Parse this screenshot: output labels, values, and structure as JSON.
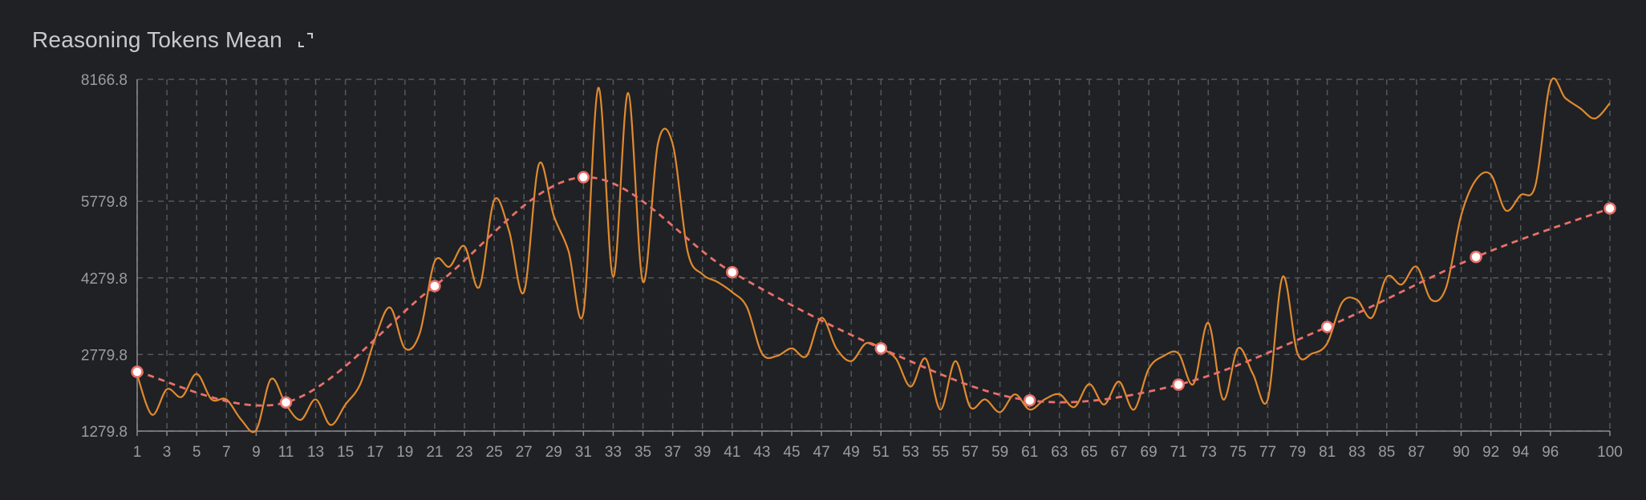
{
  "header": {
    "title": "Reasoning Tokens Mean"
  },
  "icons": {
    "expand": "expand-icon"
  },
  "colors": {
    "background": "#202124",
    "grid": "#55575d",
    "axis": "#8a8c91",
    "raw_line": "#e08a2e",
    "smooth_line": "#e8706a",
    "marker_fill": "#ffffff"
  },
  "chart_data": {
    "type": "line",
    "title": "Reasoning Tokens Mean",
    "xlabel": "",
    "ylabel": "",
    "xlim": [
      1,
      100
    ],
    "ylim": [
      1279.8,
      8166.8
    ],
    "y_ticks": [
      "1279.8",
      "2779.8",
      "4279.8",
      "5779.8",
      "8166.8"
    ],
    "x_ticks": [
      "1",
      "3",
      "5",
      "7",
      "9",
      "11",
      "13",
      "15",
      "17",
      "19",
      "21",
      "23",
      "25",
      "27",
      "29",
      "31",
      "33",
      "35",
      "37",
      "39",
      "41",
      "43",
      "45",
      "47",
      "49",
      "51",
      "53",
      "55",
      "57",
      "59",
      "61",
      "63",
      "65",
      "67",
      "69",
      "71",
      "73",
      "75",
      "77",
      "79",
      "81",
      "83",
      "85",
      "87",
      "90",
      "92",
      "94",
      "96",
      "100"
    ],
    "grid": true,
    "series": [
      {
        "x": [
          1,
          2,
          3,
          4,
          5,
          6,
          7,
          8,
          9,
          10,
          11,
          12,
          13,
          14,
          15,
          16,
          17,
          18,
          19,
          20,
          21,
          22,
          23,
          24,
          25,
          26,
          27,
          28,
          29,
          30,
          31,
          32,
          33,
          34,
          35,
          36,
          37,
          38,
          39,
          40,
          41,
          42,
          43,
          44,
          45,
          46,
          47,
          48,
          49,
          50,
          51,
          52,
          53,
          54,
          55,
          56,
          57,
          58,
          59,
          60,
          61,
          62,
          63,
          64,
          65,
          66,
          67,
          68,
          69,
          70,
          71,
          72,
          73,
          74,
          75,
          76,
          77,
          78,
          79,
          80,
          81,
          82,
          83,
          84,
          85,
          86,
          87,
          88,
          89,
          90,
          91,
          92,
          93,
          94,
          95,
          96,
          97,
          98,
          99,
          100
        ],
        "values": [
          2380,
          1600,
          2100,
          1950,
          2400,
          1900,
          1900,
          1500,
          1300,
          2300,
          1800,
          1500,
          1900,
          1400,
          1800,
          2200,
          3100,
          3700,
          2900,
          3200,
          4600,
          4500,
          4900,
          4100,
          5800,
          5200,
          4000,
          6500,
          5500,
          4800,
          3600,
          8000,
          4300,
          7900,
          4200,
          6900,
          6900,
          4800,
          4350,
          4200,
          4000,
          3700,
          2800,
          2750,
          2900,
          2750,
          3500,
          2900,
          2650,
          3000,
          2900,
          2700,
          2150,
          2700,
          1700,
          2650,
          1750,
          1900,
          1650,
          2000,
          1700,
          1900,
          2000,
          1750,
          2200,
          1800,
          2250,
          1700,
          2500,
          2750,
          2800,
          2200,
          3400,
          1900,
          2900,
          2400,
          1900,
          4300,
          2800,
          2800,
          3000,
          3800,
          3850,
          3500,
          4300,
          4150,
          4500,
          3850,
          4100,
          5500,
          6200,
          6300,
          5600,
          5900,
          6100,
          8100,
          7800,
          7600,
          7400,
          7700
        ]
      },
      {
        "x": [
          1,
          11,
          21,
          31,
          41,
          51,
          61,
          71,
          81,
          91,
          100
        ],
        "values": [
          2440,
          1840,
          4120,
          6250,
          4390,
          2900,
          1880,
          2190,
          3320,
          4690,
          5640
        ]
      }
    ]
  }
}
